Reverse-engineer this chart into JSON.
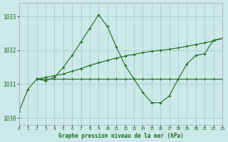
{
  "background_color": "#cce8e8",
  "grid_color": "#99cccc",
  "line_color": "#1a6e1a",
  "title": "Graphe pression niveau de la mer (hPa)",
  "xlim": [
    0,
    23
  ],
  "ylim": [
    1029.8,
    1033.4
  ],
  "yticks": [
    1030,
    1031,
    1032,
    1033
  ],
  "xticks": [
    0,
    1,
    2,
    3,
    4,
    5,
    6,
    7,
    8,
    9,
    10,
    11,
    12,
    13,
    14,
    15,
    16,
    17,
    18,
    19,
    20,
    21,
    22,
    23
  ],
  "series": [
    {
      "x": [
        0,
        1,
        2,
        3,
        4,
        5,
        6,
        7,
        8,
        9,
        10,
        11,
        12,
        13,
        14,
        15,
        16,
        17,
        18,
        19,
        20,
        21,
        22,
        23
      ],
      "y": [
        1030.2,
        1030.85,
        1031.15,
        1031.1,
        1031.2,
        1031.5,
        1031.85,
        1032.25,
        1032.65,
        1033.05,
        1032.7,
        1032.1,
        1031.55,
        1031.15,
        1030.75,
        1030.45,
        1030.45,
        1030.65,
        1031.15,
        1031.6,
        1031.85,
        1031.9,
        1032.3,
        1032.35
      ]
    },
    {
      "x": [
        2,
        3,
        4,
        5,
        6,
        7,
        8,
        9,
        10,
        11,
        12,
        13,
        14,
        15,
        16,
        17,
        18,
        19,
        20,
        21,
        22,
        23
      ],
      "y": [
        1031.15,
        1031.15,
        1031.15,
        1031.15,
        1031.15,
        1031.15,
        1031.15,
        1031.15,
        1031.15,
        1031.15,
        1031.15,
        1031.15,
        1031.15,
        1031.15,
        1031.15,
        1031.15,
        1031.15,
        1031.15,
        1031.15,
        1031.15,
        1031.15,
        1031.15
      ]
    },
    {
      "x": [
        2,
        3,
        4,
        5,
        6,
        7,
        8,
        9,
        10,
        11,
        12,
        13,
        14,
        15,
        16,
        17,
        18,
        19,
        20,
        21,
        22,
        23
      ],
      "y": [
        1031.15,
        1031.2,
        1031.25,
        1031.3,
        1031.38,
        1031.46,
        1031.55,
        1031.63,
        1031.7,
        1031.77,
        1031.83,
        1031.88,
        1031.93,
        1031.97,
        1032.0,
        1032.03,
        1032.07,
        1032.12,
        1032.17,
        1032.22,
        1032.28,
        1032.35
      ]
    }
  ]
}
